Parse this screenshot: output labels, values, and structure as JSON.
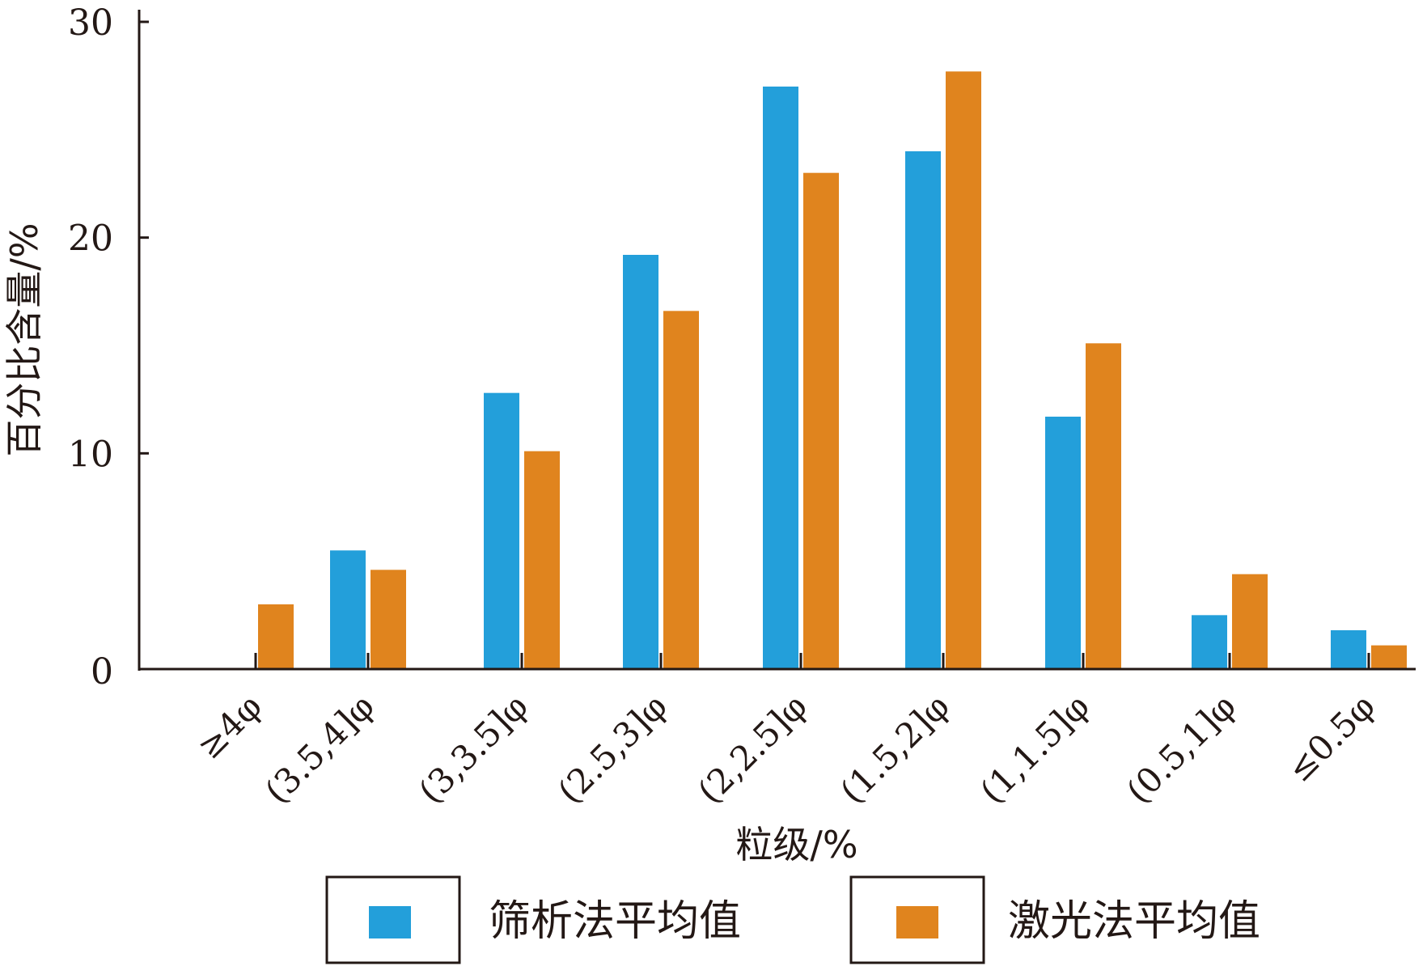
{
  "chart_data": {
    "type": "bar",
    "title": "",
    "xlabel": "粒级/%",
    "ylabel": "百分比含量/%",
    "ylim": [
      0,
      30
    ],
    "yticks": [
      0,
      10,
      20,
      30
    ],
    "grid": false,
    "legend_position": "bottom",
    "categories": [
      "≥4φ",
      "(3.5,4]φ",
      "(3,3.5]φ",
      "(2.5,3]φ",
      "(2,2.5]φ",
      "(1.5,2]φ",
      "(1,1.5]φ",
      "(0.5,1]φ",
      "≤0.5φ"
    ],
    "series": [
      {
        "name": "筛析法平均值",
        "color": "#239fda",
        "values": [
          0,
          5.5,
          12.8,
          19.2,
          27.0,
          24.0,
          11.7,
          2.5,
          1.8
        ]
      },
      {
        "name": "激光法平均值",
        "color": "#e0841e",
        "values": [
          3.0,
          4.6,
          10.1,
          16.6,
          23.0,
          27.7,
          15.1,
          4.4,
          1.1
        ]
      }
    ]
  }
}
